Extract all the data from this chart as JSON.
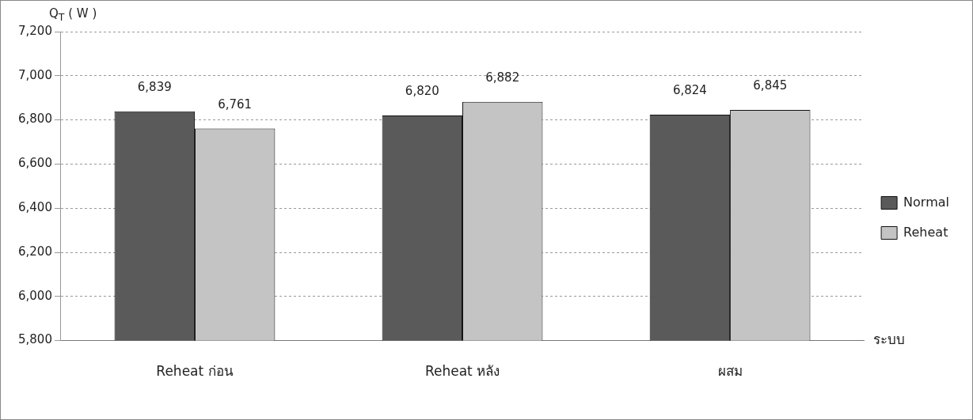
{
  "chart_data": {
    "type": "bar",
    "ylabel": "Q$_{T}$ ( W )",
    "xlabel": "ระบบ",
    "categories": [
      "Reheat ก่อน",
      "Reheat หลัง",
      "ผสม"
    ],
    "series": [
      {
        "name": "Normal",
        "color": "#5a5a5a",
        "values": [
          6839,
          6820,
          6824
        ],
        "value_labels": [
          "6,839",
          "6,820",
          "6,824"
        ]
      },
      {
        "name": "Reheat",
        "color": "#c4c4c4",
        "values": [
          6761,
          6882,
          6845
        ],
        "value_labels": [
          "6,761",
          "6,882",
          "6,845"
        ]
      }
    ],
    "ylim": [
      5800,
      7200
    ],
    "yticks": [
      {
        "value": 5800,
        "label": "5,800"
      },
      {
        "value": 6000,
        "label": "6,000"
      },
      {
        "value": 6200,
        "label": "6,200"
      },
      {
        "value": 6400,
        "label": "6,400"
      },
      {
        "value": 6600,
        "label": "6,600"
      },
      {
        "value": 6800,
        "label": "6,800"
      },
      {
        "value": 7000,
        "label": "7,000"
      },
      {
        "value": 7200,
        "label": "7,200"
      }
    ],
    "grid": "y",
    "legend": "right"
  }
}
